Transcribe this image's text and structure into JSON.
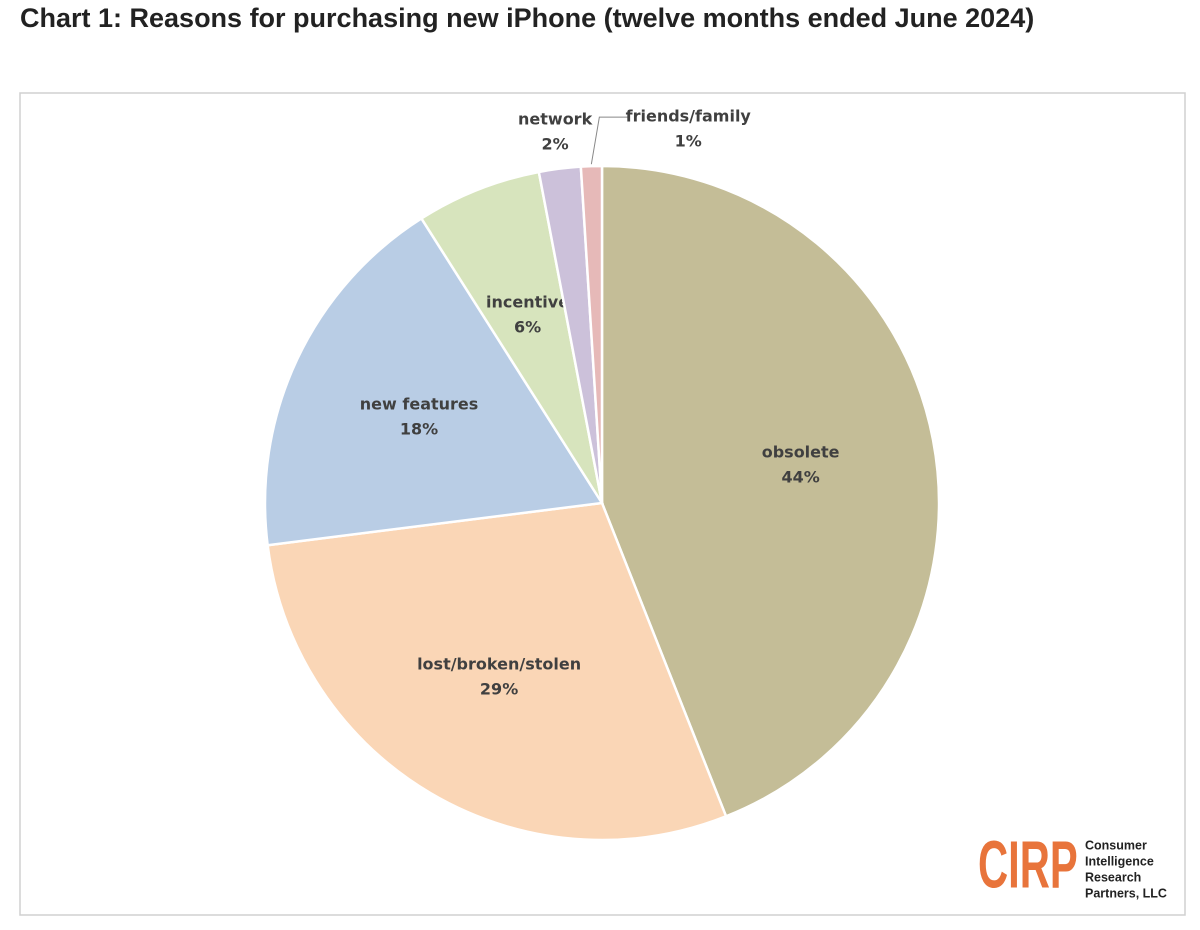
{
  "chart_data": {
    "type": "pie",
    "title": "Chart 1: Reasons for purchasing new iPhone (twelve months ended June 2024)",
    "categories": [
      "obsolete",
      "lost/broken/stolen",
      "new features",
      "incentive",
      "network",
      "friends/family"
    ],
    "values": [
      44,
      29,
      18,
      6,
      2,
      1
    ],
    "value_labels": [
      "44%",
      "29%",
      "18%",
      "6%",
      "2%",
      "1%"
    ],
    "colors": [
      "#c4bd97",
      "#fad6b6",
      "#b9cde5",
      "#d7e4bd",
      "#ccc1da",
      "#e6b9b8"
    ]
  },
  "logo": {
    "mark": "CIRP",
    "lines": [
      "Consumer",
      "Intelligence",
      "Research",
      "Partners, LLC"
    ]
  }
}
